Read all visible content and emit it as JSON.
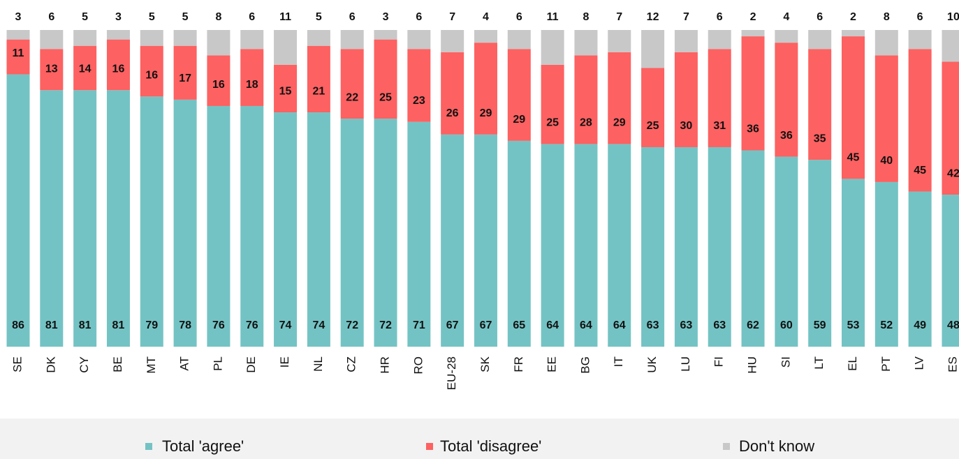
{
  "chart_data": {
    "type": "stacked_bar",
    "categories": [
      "SE",
      "DK",
      "CY",
      "BE",
      "MT",
      "AT",
      "PL",
      "DE",
      "IE",
      "NL",
      "CZ",
      "HR",
      "RO",
      "EU-28",
      "SK",
      "FR",
      "EE",
      "BG",
      "IT",
      "UK",
      "LU",
      "FI",
      "HU",
      "SI",
      "LT",
      "EL",
      "PT",
      "LV",
      "ES"
    ],
    "ylim": [
      0,
      100
    ],
    "series": [
      {
        "name": "Total 'agree'",
        "color": "#74c3c4",
        "values": [
          86,
          81,
          81,
          81,
          79,
          78,
          76,
          76,
          74,
          74,
          72,
          72,
          71,
          67,
          67,
          65,
          64,
          64,
          64,
          63,
          63,
          63,
          62,
          60,
          59,
          53,
          52,
          49,
          48
        ]
      },
      {
        "name": "Total 'disagree'",
        "color": "#fd6161",
        "values": [
          11,
          13,
          14,
          16,
          16,
          17,
          16,
          18,
          15,
          21,
          22,
          25,
          23,
          26,
          29,
          29,
          25,
          28,
          29,
          25,
          30,
          31,
          36,
          36,
          35,
          45,
          40,
          45,
          42
        ]
      },
      {
        "name": "Don't know",
        "color": "#c8c8c8",
        "values": [
          3,
          6,
          5,
          3,
          5,
          5,
          8,
          6,
          11,
          5,
          6,
          3,
          6,
          7,
          4,
          6,
          11,
          8,
          7,
          12,
          7,
          6,
          2,
          4,
          6,
          2,
          8,
          6,
          10
        ]
      }
    ]
  }
}
